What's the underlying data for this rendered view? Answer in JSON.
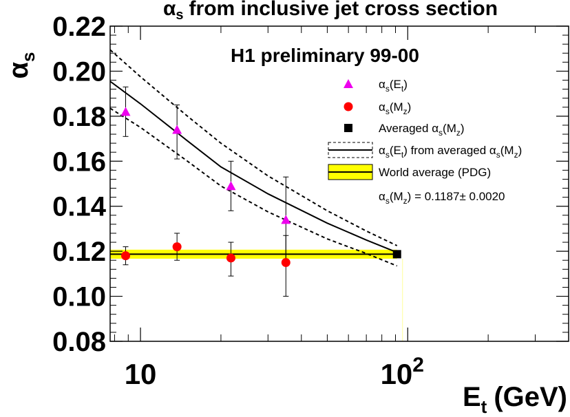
{
  "chart_data": {
    "type": "scatter",
    "title": "αs from inclusive jet cross section",
    "title_symbol": "α",
    "title_sub": "s",
    "title_rest": "from inclusive jet cross section",
    "annotation": "H1 preliminary 99-00",
    "xlabel": {
      "main": "E",
      "sub": "t",
      "unit": "(GeV)"
    },
    "ylabel": {
      "main": "α",
      "sub": "s"
    },
    "x_scale": "log",
    "xlim": [
      7.7,
      400
    ],
    "ylim": [
      0.08,
      0.22
    ],
    "x_tick_labels": [
      {
        "value": 10,
        "base": "10",
        "exp": ""
      },
      {
        "value": 100,
        "base": "10",
        "exp": "2"
      }
    ],
    "y_tick_values": [
      0.08,
      0.1,
      0.12,
      0.14,
      0.16,
      0.18,
      0.2,
      0.22
    ],
    "y_tick_labels": [
      "0.08",
      "0.10",
      "0.12",
      "0.14",
      "0.16",
      "0.18",
      "0.20",
      "0.22"
    ],
    "series": [
      {
        "name": "αs(Et)",
        "marker": "triangle",
        "color": "#ee00ee",
        "points": [
          {
            "x": 8.8,
            "y": 0.182,
            "err_low": 0.011,
            "err_high": 0.011
          },
          {
            "x": 13.7,
            "y": 0.174,
            "err_low": 0.013,
            "err_high": 0.011
          },
          {
            "x": 21.8,
            "y": 0.149,
            "err_low": 0.011,
            "err_high": 0.011
          },
          {
            "x": 35.0,
            "y": 0.134,
            "err_low": 0.02,
            "err_high": 0.019
          }
        ]
      },
      {
        "name": "αs(Mz)",
        "marker": "circle",
        "color": "#ff0000",
        "points": [
          {
            "x": 8.8,
            "y": 0.118,
            "err_low": 0.004,
            "err_high": 0.004
          },
          {
            "x": 13.7,
            "y": 0.122,
            "err_low": 0.006,
            "err_high": 0.006
          },
          {
            "x": 21.8,
            "y": 0.117,
            "err_low": 0.008,
            "err_high": 0.007
          },
          {
            "x": 35.0,
            "y": 0.115,
            "err_low": 0.015,
            "err_high": 0.012
          }
        ]
      },
      {
        "name": "Averaged αs(Mz)",
        "marker": "square",
        "color": "#000000",
        "points": [
          {
            "x": 91.2,
            "y": 0.1187
          }
        ]
      }
    ],
    "curves": [
      {
        "name": "αs(Et) from averaged αs(Mz)",
        "style": "solid",
        "points": [
          [
            7.7,
            0.1955
          ],
          [
            10,
            0.1855
          ],
          [
            15,
            0.169
          ],
          [
            20,
            0.1575
          ],
          [
            30,
            0.1455
          ],
          [
            50,
            0.1325
          ],
          [
            70,
            0.125
          ],
          [
            91.2,
            0.1195
          ]
        ]
      },
      {
        "name": "upper band",
        "style": "dashed",
        "points": [
          [
            7.7,
            0.2095
          ],
          [
            10,
            0.1975
          ],
          [
            15,
            0.18
          ],
          [
            20,
            0.168
          ],
          [
            30,
            0.1535
          ],
          [
            50,
            0.138
          ],
          [
            70,
            0.129
          ],
          [
            91.2,
            0.1225
          ]
        ]
      },
      {
        "name": "lower band",
        "style": "dashed",
        "points": [
          [
            7.7,
            0.1835
          ],
          [
            10,
            0.175
          ],
          [
            15,
            0.16
          ],
          [
            20,
            0.149
          ],
          [
            30,
            0.1375
          ],
          [
            50,
            0.1255
          ],
          [
            70,
            0.119
          ],
          [
            91.2,
            0.1135
          ]
        ]
      }
    ],
    "world_average": {
      "name": "World average (PDG)",
      "value": 0.1187,
      "error": 0.002,
      "x_end": 91.2,
      "fill_color": "#ffff00",
      "label": "αs(Mz) = 0.1187 ± 0.0020"
    },
    "legend": {
      "position": "top-right",
      "entries": [
        {
          "kind": "triangle",
          "color": "#ee00ee",
          "main": "α",
          "sub": "s",
          "paren": "E",
          "paren_sub": "t",
          "tail": ""
        },
        {
          "kind": "circle",
          "color": "#ff0000",
          "main": "α",
          "sub": "s",
          "paren": "M",
          "paren_sub": "z",
          "tail": ""
        },
        {
          "kind": "square",
          "color": "#000000",
          "prefix": "Averaged ",
          "main": "α",
          "sub": "s",
          "paren": "M",
          "paren_sub": "z",
          "tail": ""
        },
        {
          "kind": "band-line",
          "color": "#000000",
          "main": "α",
          "sub": "s",
          "paren": "E",
          "paren_sub": "t",
          "tail": " from averaged ",
          "main2": "α",
          "sub2": "s",
          "paren2": "M",
          "paren2_sub": "z"
        },
        {
          "kind": "yellow-band",
          "color": "#ffff00",
          "text": "World average (PDG)"
        },
        {
          "kind": "text-only",
          "main": "α",
          "sub": "s",
          "paren": "M",
          "paren_sub": "z",
          "tail": " = 0.1187",
          "pm": "±",
          "after": " 0.0020"
        }
      ]
    }
  }
}
